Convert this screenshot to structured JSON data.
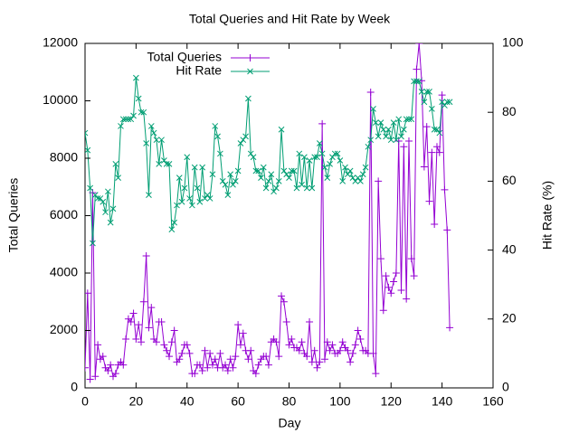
{
  "chart_data": {
    "type": "line",
    "title": "Total Queries and Hit Rate by Week",
    "x_label": "Day",
    "y_label": "Total Queries",
    "y2_label": "Hit Rate (%)",
    "x": [
      0,
      1,
      2,
      3,
      4,
      5,
      6,
      7,
      8,
      9,
      10,
      11,
      12,
      13,
      14,
      15,
      16,
      17,
      18,
      19,
      20,
      21,
      22,
      23,
      24,
      25,
      26,
      27,
      28,
      29,
      30,
      31,
      32,
      33,
      34,
      35,
      36,
      37,
      38,
      39,
      40,
      41,
      42,
      43,
      44,
      45,
      46,
      47,
      48,
      49,
      50,
      51,
      52,
      53,
      54,
      55,
      56,
      57,
      58,
      59,
      60,
      61,
      62,
      63,
      64,
      65,
      66,
      67,
      68,
      69,
      70,
      71,
      72,
      73,
      74,
      75,
      76,
      77,
      78,
      79,
      80,
      81,
      82,
      83,
      84,
      85,
      86,
      87,
      88,
      89,
      90,
      91,
      92,
      93,
      94,
      95,
      96,
      97,
      98,
      99,
      100,
      101,
      102,
      103,
      104,
      105,
      106,
      107,
      108,
      109,
      110,
      111,
      112,
      113,
      114,
      115,
      116,
      117,
      118,
      119,
      120,
      121,
      122,
      123,
      124,
      125,
      126,
      127,
      128,
      129,
      130,
      131,
      132,
      133,
      134,
      135,
      136,
      137,
      138,
      139,
      140,
      141,
      142,
      143
    ],
    "series": [
      {
        "name": "Total Queries",
        "color": "#9400d3",
        "marker": "+",
        "axis": "y",
        "values": [
          700,
          3300,
          300,
          6800,
          400,
          1500,
          1000,
          1100,
          700,
          600,
          800,
          400,
          500,
          800,
          900,
          800,
          1700,
          2400,
          2300,
          2600,
          1700,
          2200,
          1600,
          3000,
          4600,
          2100,
          2800,
          1700,
          1600,
          2300,
          2300,
          1500,
          1300,
          1100,
          1600,
          2000,
          900,
          1000,
          1200,
          1500,
          1500,
          1200,
          500,
          500,
          800,
          800,
          600,
          1300,
          700,
          1200,
          800,
          1000,
          700,
          1200,
          700,
          800,
          600,
          1000,
          700,
          1100,
          2200,
          1500,
          1900,
          1300,
          1000,
          1300,
          600,
          500,
          800,
          1000,
          1100,
          1100,
          800,
          1600,
          1700,
          1600,
          1100,
          3200,
          3000,
          2300,
          1500,
          1700,
          1400,
          1400,
          1300,
          1600,
          1200,
          1100,
          2300,
          900,
          1300,
          700,
          900,
          9200,
          1000,
          1600,
          1300,
          1500,
          1200,
          1200,
          1300,
          1600,
          1400,
          1300,
          900,
          1200,
          1500,
          2000,
          1700,
          1300,
          1300,
          1200,
          10300,
          1200,
          500,
          7200,
          4500,
          2700,
          3900,
          3500,
          3300,
          3700,
          4000,
          8600,
          3400,
          8400,
          3100,
          8600,
          4500,
          3900,
          11100,
          12000,
          10700,
          7700,
          9100,
          6500,
          8200,
          5700,
          8400,
          8200,
          10200,
          6900,
          5500,
          2100
        ]
      },
      {
        "name": "Hit Rate",
        "color": "#009e73",
        "marker": "x",
        "axis": "y2",
        "values": [
          74,
          69,
          58,
          42,
          56,
          55,
          55,
          54,
          51,
          57,
          48,
          52,
          65,
          61,
          76,
          78,
          78,
          78,
          78,
          79,
          90,
          84,
          80,
          80,
          71,
          56,
          76,
          74,
          72,
          65,
          72,
          66,
          65,
          65,
          46,
          48,
          53,
          61,
          54,
          58,
          67,
          55,
          53,
          64,
          58,
          54,
          64,
          55,
          56,
          55,
          62,
          76,
          73,
          68,
          60,
          59,
          56,
          62,
          59,
          60,
          63,
          71,
          72,
          73,
          84,
          68,
          67,
          63,
          63,
          61,
          64,
          58,
          60,
          62,
          57,
          58,
          60,
          75,
          63,
          62,
          61,
          63,
          63,
          58,
          68,
          59,
          67,
          58,
          66,
          58,
          67,
          67,
          71,
          68,
          64,
          61,
          65,
          67,
          68,
          68,
          66,
          60,
          64,
          62,
          63,
          61,
          60,
          61,
          60,
          62,
          64,
          70,
          72,
          81,
          77,
          73,
          77,
          75,
          73,
          75,
          72,
          77,
          72,
          78,
          73,
          75,
          78,
          78,
          78,
          89,
          89,
          89,
          86,
          83,
          86,
          86,
          81,
          75,
          75,
          74,
          83,
          82,
          83,
          83
        ]
      }
    ],
    "xlim": [
      0,
      160
    ],
    "xticks": [
      0,
      20,
      40,
      60,
      80,
      100,
      120,
      140,
      160
    ],
    "ylim": [
      0,
      12000
    ],
    "yticks": [
      0,
      2000,
      4000,
      6000,
      8000,
      10000,
      12000
    ],
    "y2lim": [
      0,
      100
    ],
    "y2ticks": [
      0,
      20,
      40,
      60,
      80,
      100
    ],
    "legend": "top-left",
    "grid": false
  }
}
